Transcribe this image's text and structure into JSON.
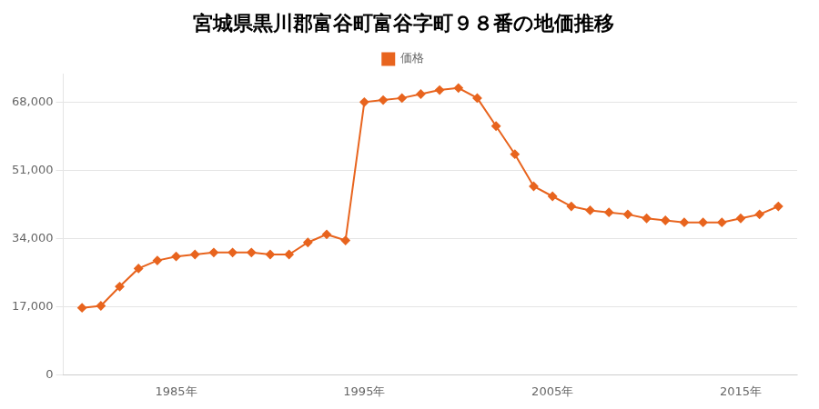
{
  "chart_data": {
    "type": "line",
    "title": "宮城県黒川郡富谷町富谷字町９８番の地価推移",
    "x": [
      1980,
      1981,
      1982,
      1983,
      1984,
      1985,
      1986,
      1987,
      1988,
      1989,
      1990,
      1991,
      1992,
      1993,
      1994,
      1995,
      1996,
      1997,
      1998,
      1999,
      2000,
      2001,
      2002,
      2003,
      2004,
      2005,
      2006,
      2007,
      2008,
      2009,
      2010,
      2011,
      2012,
      2013,
      2014,
      2015,
      2016,
      2017
    ],
    "series": [
      {
        "name": "価格",
        "color": "#e8641e",
        "marker": "diamond",
        "values": [
          16700,
          17200,
          22000,
          26500,
          28500,
          29500,
          30000,
          30500,
          30500,
          30500,
          30000,
          30000,
          33000,
          35000,
          33500,
          68000,
          68500,
          69000,
          70000,
          71000,
          71500,
          69000,
          62000,
          55000,
          47000,
          44500,
          42000,
          41000,
          40500,
          40000,
          39000,
          38500,
          38000,
          38000,
          38000,
          39000,
          40000,
          42000
        ]
      }
    ],
    "xlim": [
      1979,
      2018
    ],
    "xticks": [
      {
        "value": 1985,
        "label": "1985年"
      },
      {
        "value": 1995,
        "label": "1995年"
      },
      {
        "value": 2005,
        "label": "2005年"
      },
      {
        "value": 2015,
        "label": "2015年"
      }
    ],
    "ylim": [
      0,
      75000
    ],
    "yticks": [
      0,
      {
        "value": 17000,
        "label": "17,000"
      },
      {
        "value": 34000,
        "label": "34,000"
      },
      {
        "value": 51000,
        "label": "51,000"
      },
      {
        "value": 68000,
        "label": "68,000"
      }
    ],
    "grid": "y",
    "legend": "top"
  }
}
